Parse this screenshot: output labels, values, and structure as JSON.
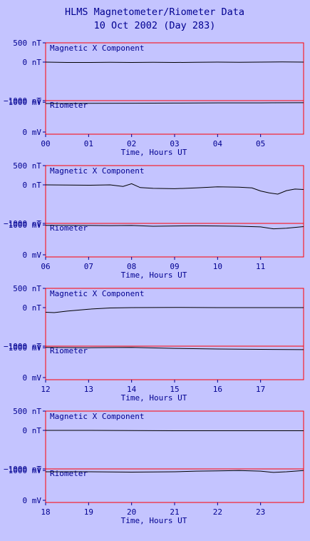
{
  "title_line1": "HLMS Magnetometer/Riometer Data",
  "title_line2": "10 Oct 2002 (Day 283)",
  "colors": {
    "background": "#c4c4ff",
    "frame": "#ff0000",
    "text": "#000090",
    "trace": "#000000"
  },
  "chart_data": [
    {
      "type": "line",
      "hours": [
        0,
        6
      ],
      "xticks": [
        "00",
        "01",
        "02",
        "03",
        "04",
        "05"
      ],
      "xlabel": "Time, Hours UT",
      "magnetometer": {
        "label": "Magnetic X Component",
        "yticks": [
          "500 nT",
          "0 nT",
          "-1000 nT"
        ],
        "ylim": [
          -1000,
          500
        ],
        "x": [
          0,
          0.5,
          1,
          1.5,
          2,
          2.5,
          3,
          3.5,
          4,
          4.5,
          5,
          5.5,
          6
        ],
        "y": [
          0,
          -10,
          -10,
          -5,
          -10,
          -5,
          -10,
          -5,
          0,
          -5,
          0,
          5,
          0
        ]
      },
      "riometer": {
        "label": "Riometer",
        "yticks": [
          "1000 mV",
          "0 mV"
        ],
        "ylim": [
          0,
          1050
        ],
        "x": [
          0,
          1,
          2,
          3,
          4,
          5,
          6
        ],
        "y": [
          960,
          965,
          970,
          975,
          980,
          980,
          985
        ]
      }
    },
    {
      "type": "line",
      "hours": [
        6,
        12
      ],
      "xticks": [
        "06",
        "07",
        "08",
        "09",
        "10",
        "11"
      ],
      "xlabel": "Time, Hours UT",
      "magnetometer": {
        "label": "Magnetic X Component",
        "yticks": [
          "500 nT",
          "0 nT",
          "-1000 nT"
        ],
        "ylim": [
          -1000,
          500
        ],
        "x": [
          6,
          6.5,
          7,
          7.5,
          7.8,
          8.0,
          8.2,
          8.5,
          9,
          9.5,
          10,
          10.5,
          10.8,
          11.0,
          11.2,
          11.4,
          11.6,
          11.8,
          12
        ],
        "y": [
          0,
          -5,
          -10,
          0,
          -40,
          30,
          -70,
          -90,
          -100,
          -80,
          -50,
          -60,
          -80,
          -160,
          -210,
          -240,
          -150,
          -110,
          -120
        ]
      },
      "riometer": {
        "label": "Riometer",
        "yticks": [
          "1000 mV",
          "0 mV"
        ],
        "ylim": [
          0,
          1050
        ],
        "x": [
          6,
          6.5,
          7,
          7.5,
          8,
          8.5,
          9,
          9.5,
          10,
          10.5,
          11,
          11.3,
          11.6,
          12
        ],
        "y": [
          990,
          990,
          985,
          980,
          985,
          960,
          970,
          975,
          970,
          960,
          940,
          880,
          900,
          950
        ]
      }
    },
    {
      "type": "line",
      "hours": [
        12,
        18
      ],
      "xticks": [
        "12",
        "13",
        "14",
        "15",
        "16",
        "17"
      ],
      "xlabel": "Time, Hours UT",
      "magnetometer": {
        "label": "Magnetic X Component",
        "yticks": [
          "500 nT",
          "0 nT",
          "-1000 nT"
        ],
        "ylim": [
          -1000,
          500
        ],
        "x": [
          12,
          12.2,
          12.5,
          13,
          13.5,
          14,
          15,
          16,
          17,
          18
        ],
        "y": [
          -120,
          -130,
          -90,
          -40,
          -10,
          0,
          5,
          0,
          0,
          0
        ]
      },
      "riometer": {
        "label": "Riometer",
        "yticks": [
          "1000 mV",
          "0 mV"
        ],
        "ylim": [
          0,
          1050
        ],
        "x": [
          12,
          13,
          14,
          15,
          16,
          17,
          18
        ],
        "y": [
          1010,
          1000,
          1010,
          980,
          960,
          950,
          940
        ]
      }
    },
    {
      "type": "line",
      "hours": [
        18,
        24
      ],
      "xticks": [
        "18",
        "19",
        "20",
        "21",
        "22",
        "23"
      ],
      "xlabel": "Time, Hours UT",
      "magnetometer": {
        "label": "Magnetic X Component",
        "yticks": [
          "500 nT",
          "0 nT",
          "-1000 nT"
        ],
        "ylim": [
          -1000,
          500
        ],
        "x": [
          18,
          19,
          20,
          21,
          22,
          23,
          24
        ],
        "y": [
          0,
          0,
          -5,
          -10,
          -10,
          -10,
          -10
        ]
      },
      "riometer": {
        "label": "Riometer",
        "yticks": [
          "1000 mV",
          "0 mV"
        ],
        "ylim": [
          0,
          1050
        ],
        "x": [
          18,
          19,
          20,
          21,
          21.5,
          22,
          22.5,
          23,
          23.3,
          23.6,
          24
        ],
        "y": [
          960,
          960,
          950,
          960,
          980,
          990,
          1000,
          980,
          940,
          960,
          1000
        ]
      }
    }
  ]
}
